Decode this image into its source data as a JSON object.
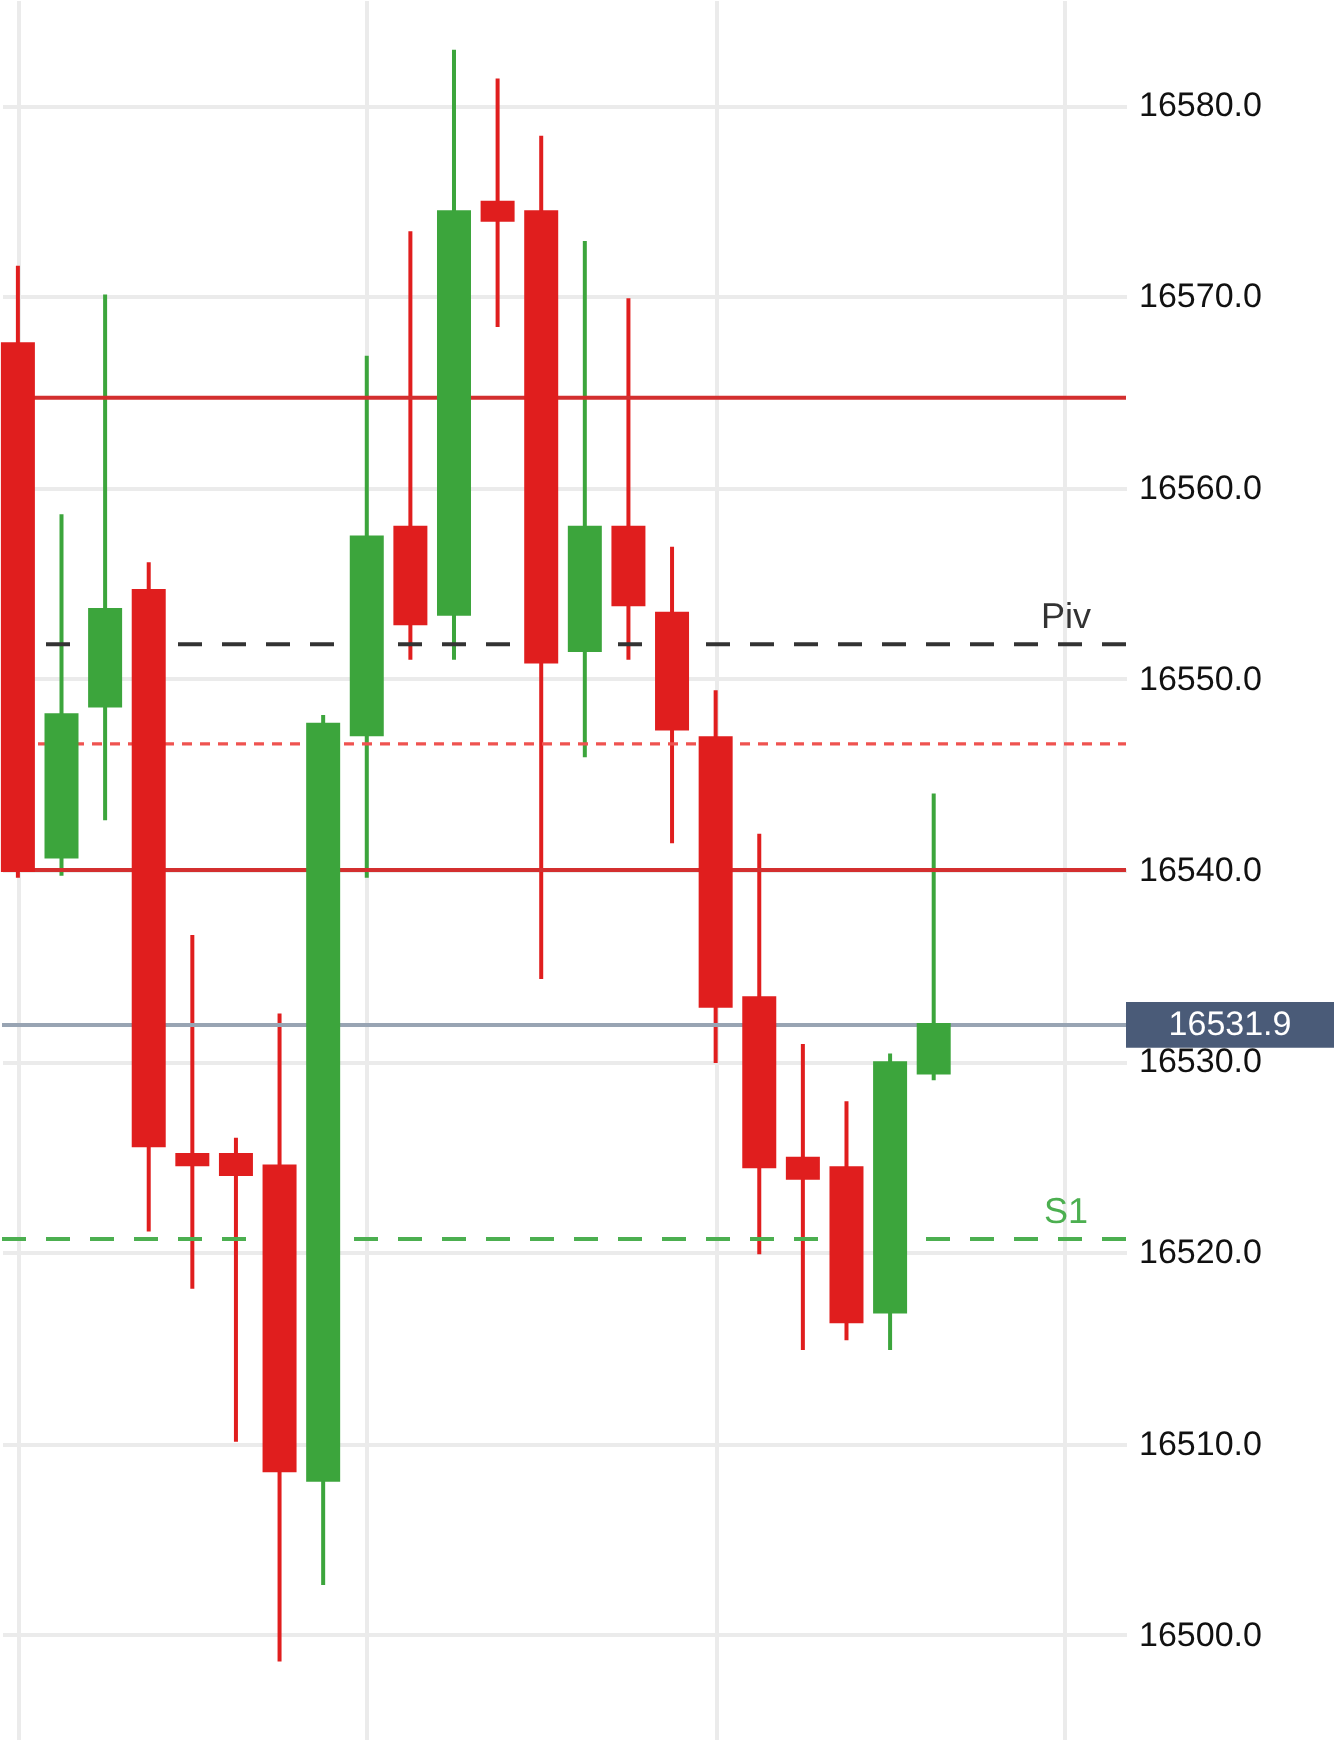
{
  "chart_data": {
    "type": "candlestick",
    "categories": [
      null,
      null,
      null,
      null,
      null,
      null,
      null,
      null,
      null,
      null,
      null,
      null,
      null,
      null,
      null,
      null,
      null,
      null,
      null,
      null,
      null,
      null
    ],
    "ohlc": [
      [
        16567.6,
        16571.6,
        16539.6,
        16539.9
      ],
      [
        16540.6,
        16558.6,
        16539.7,
        16548.2
      ],
      [
        16548.5,
        16570.1,
        16542.6,
        16553.7
      ],
      [
        16554.7,
        16556.1,
        16521.1,
        16525.5
      ],
      [
        16525.2,
        16536.6,
        16518.1,
        16524.5
      ],
      [
        16525.2,
        16526.0,
        16510.1,
        16524.0
      ],
      [
        16524.6,
        16532.5,
        16498.6,
        16508.5
      ],
      [
        16508.0,
        16548.1,
        16502.6,
        16547.7
      ],
      [
        16547.0,
        16566.9,
        16539.6,
        16557.5
      ],
      [
        16558.0,
        16573.4,
        16551.0,
        16552.8
      ],
      [
        16553.3,
        16582.9,
        16551.0,
        16574.5
      ],
      [
        16575.0,
        16581.4,
        16568.4,
        16573.9
      ],
      [
        16574.5,
        16578.4,
        16534.3,
        16550.8
      ],
      [
        16551.4,
        16572.9,
        16545.9,
        16558.0
      ],
      [
        16558.0,
        16569.9,
        16551.0,
        16553.8
      ],
      [
        16553.5,
        16556.9,
        16541.4,
        16547.3
      ],
      [
        16547.0,
        16549.4,
        16529.9,
        16532.8
      ],
      [
        16533.4,
        16541.9,
        16519.9,
        16524.4
      ],
      [
        16525.0,
        16530.9,
        16514.9,
        16523.8
      ],
      [
        16524.5,
        16527.9,
        16515.4,
        16516.3
      ],
      [
        16516.8,
        16530.4,
        16514.9,
        16530.0
      ],
      [
        16529.3,
        16544.0,
        16529.0,
        16532.0
      ]
    ],
    "colors": [
      "#e01e1e",
      "#3ca53c",
      "#3ca53c",
      "#e01e1e",
      "#e01e1e",
      "#e01e1e",
      "#e01e1e",
      "#3ca53c",
      "#3ca53c",
      "#e01e1e",
      "#3ca53c",
      "#e01e1e",
      "#e01e1e",
      "#3ca53c",
      "#e01e1e",
      "#e01e1e",
      "#e01e1e",
      "#e01e1e",
      "#e01e1e",
      "#e01e1e",
      "#3ca53c",
      "#3ca53c"
    ],
    "ylim": [
      16494.5,
      16585.5
    ],
    "yticks": [
      {
        "value": 16500,
        "label": "16500.0"
      },
      {
        "value": 16510,
        "label": "16510.0"
      },
      {
        "value": 16520,
        "label": "16520.0"
      },
      {
        "value": 16530,
        "label": "16530.0"
      },
      {
        "value": 16540,
        "label": "16540.0"
      },
      {
        "value": 16550,
        "label": "16550.0"
      },
      {
        "value": 16560,
        "label": "16560.0"
      },
      {
        "value": 16570,
        "label": "16570.0"
      },
      {
        "value": 16580,
        "label": "16580.0"
      }
    ],
    "grid": true,
    "ref_lines": [
      {
        "axis": "y",
        "value": 16564.7,
        "color": "#d32f2f",
        "line_style": "solid"
      },
      {
        "axis": "y",
        "value": 16540.0,
        "color": "#d32f2f",
        "line_style": "solid"
      },
      {
        "axis": "y",
        "value": 16546.6,
        "color": "#ef5350",
        "line_style": "dotted"
      },
      {
        "axis": "y",
        "value": 16551.8,
        "label": "Piv",
        "color": "#333333",
        "line_style": "dashed"
      },
      {
        "axis": "y",
        "value": 16520.7,
        "label": "S1",
        "color": "#4caf50",
        "line_style": "dashed"
      },
      {
        "axis": "y",
        "value": 16531.9,
        "label": "16531.9",
        "color": "#98a4b3",
        "line_style": "solid"
      }
    ]
  }
}
